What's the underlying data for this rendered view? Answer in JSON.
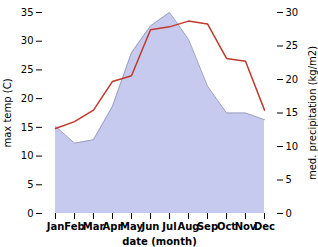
{
  "chart_data": {
    "type": "line",
    "xlabel": "date (month)",
    "ylabel": "max temp (C)",
    "y2label": "med. precipitation (kg/m2)",
    "categories": [
      "Jan",
      "Feb",
      "Mar",
      "Apr",
      "May",
      "Jun",
      "Jul",
      "Aug",
      "Sep",
      "Oct",
      "Nov",
      "Dec"
    ],
    "series": [
      {
        "type": "area",
        "axis": "y2",
        "color": "#c5caee",
        "values": [
          13.0,
          10.5,
          11.0,
          16.0,
          24.0,
          28.0,
          30.0,
          26.0,
          19.0,
          15.0,
          15.0,
          14.0
        ]
      },
      {
        "type": "line",
        "color": "#c0392b",
        "values": [
          14.8,
          16.0,
          18.0,
          23.0,
          24.0,
          32.0,
          32.5,
          33.5,
          33.0,
          27.0,
          26.5,
          18.0
        ]
      }
    ],
    "ylim": [
      0,
      35
    ],
    "yticks": [
      0,
      5,
      10,
      15,
      20,
      25,
      30,
      35
    ],
    "y2lim": [
      0,
      30
    ],
    "y2ticks": [
      0,
      5,
      10,
      15,
      20,
      25,
      30
    ],
    "grid": false
  }
}
